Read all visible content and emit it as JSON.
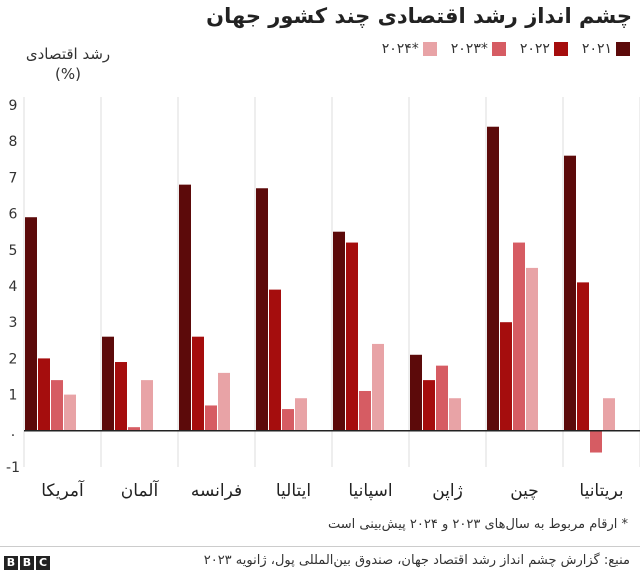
{
  "header": {
    "title": "چشم انداز رشد اقتصادی چند کشور جهان"
  },
  "legend": [
    {
      "label": "۲۰۲۱",
      "color": "#5c0a0a"
    },
    {
      "label": "۲۰۲۲",
      "color": "#a50d0d"
    },
    {
      "label": "۲۰۲۳*",
      "color": "#d65c63"
    },
    {
      "label": "۲۰۲۴*",
      "color": "#e8a3a6"
    }
  ],
  "footer": {
    "note": "* ارقام مربوط به سال‌های ۲۰۲۳ و ۲۰۲۴ پیش‌بینی است",
    "source": "منبع: گزارش چشم انداز رشد اقتصاد جهان، صندوق بین‌المللی پول، ژانویه ۲۰۲۳",
    "logo_letters": [
      "B",
      "B",
      "C"
    ]
  },
  "chart_data": {
    "type": "bar",
    "title": "چشم انداز رشد اقتصادی چند کشور جهان",
    "ylabel": "رشد اقتصادی (%)",
    "xlabel": "",
    "ylim": [
      -1,
      9
    ],
    "yticks": [
      -1,
      0,
      1,
      2,
      3,
      4,
      5,
      6,
      7,
      8,
      9
    ],
    "ytick_labels": [
      "-1",
      ".",
      "1",
      "2",
      "3",
      "4",
      "5",
      "6",
      "7",
      "8",
      "9"
    ],
    "grid": "vertical category separators",
    "legend_position": "top-right",
    "categories": [
      "آمریکا",
      "آلمان",
      "فرانسه",
      "ایتالیا",
      "اسپانیا",
      "ژاپن",
      "چین",
      "بریتانیا"
    ],
    "series": [
      {
        "name": "۲۰۲۱",
        "color": "#5c0a0a",
        "values": [
          5.9,
          2.6,
          6.8,
          6.7,
          5.5,
          2.1,
          8.4,
          7.6
        ]
      },
      {
        "name": "۲۰۲۲",
        "color": "#a50d0d",
        "values": [
          2.0,
          1.9,
          2.6,
          3.9,
          5.2,
          1.4,
          3.0,
          4.1
        ]
      },
      {
        "name": "۲۰۲۳*",
        "color": "#d65c63",
        "values": [
          1.4,
          0.1,
          0.7,
          0.6,
          1.1,
          1.8,
          5.2,
          -0.6
        ]
      },
      {
        "name": "۲۰۲۴*",
        "color": "#e8a3a6",
        "values": [
          1.0,
          1.4,
          1.6,
          0.9,
          2.4,
          0.9,
          4.5,
          0.9
        ]
      }
    ]
  }
}
